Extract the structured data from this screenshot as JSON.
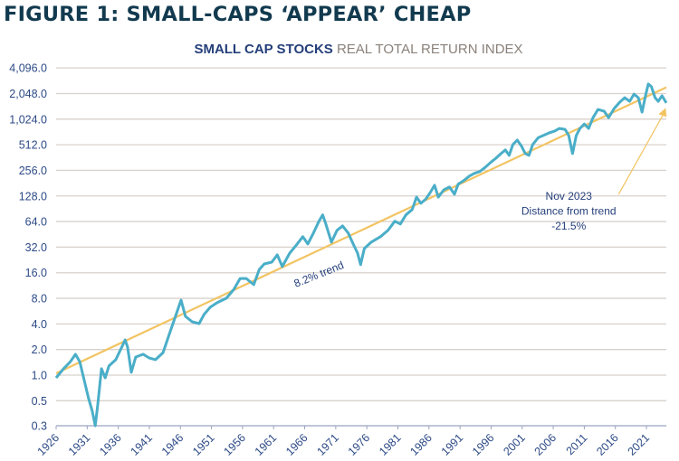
{
  "figure_title": "FIGURE 1: SMALL-CAPS ‘APPEAR’ CHEAP",
  "chart_title": {
    "bold": "SMALL CAP STOCKS",
    "regular": " REAL TOTAL RETURN INDEX"
  },
  "colors": {
    "series": "#4aaec8",
    "trend": "#f2c462",
    "grid": "#d8d2cc",
    "axis": "#9aa4c0",
    "label": "#2d4a86",
    "title": "#123a4f"
  },
  "chart_data": {
    "type": "line",
    "title": "SMALL CAP STOCKS REAL TOTAL RETURN INDEX",
    "xlabel": "",
    "ylabel": "",
    "yscale": "log2",
    "ylim": [
      0.3,
      4096
    ],
    "xlim": [
      1926,
      2024.2
    ],
    "grid": true,
    "y_ticks": [
      4096,
      2048,
      1024,
      512,
      256,
      128,
      64,
      32,
      16,
      8,
      4,
      2,
      1,
      0.5,
      0.3
    ],
    "y_tick_labels": [
      "4,096.0",
      "2,048.0",
      "1,024.0",
      "512.0",
      "256.0",
      "128.0",
      "64.0",
      "32.0",
      "16.0",
      "8.0",
      "4.0",
      "2.0",
      "1.0",
      "0.5",
      "0.3"
    ],
    "x_ticks": [
      1926,
      1931,
      1936,
      1941,
      1946,
      1951,
      1956,
      1961,
      1966,
      1971,
      1976,
      1981,
      1986,
      1991,
      1996,
      2001,
      2006,
      2011,
      2016,
      2021
    ],
    "series": [
      {
        "name": "Small cap stocks real total return index",
        "x": [
          1926.0,
          1927.2,
          1928.3,
          1929.1,
          1929.8,
          1930.5,
          1931.2,
          1931.8,
          1932.3,
          1932.7,
          1933.3,
          1933.9,
          1934.5,
          1935.6,
          1936.5,
          1937.1,
          1937.5,
          1938.1,
          1938.8,
          1940.0,
          1941.0,
          1942.0,
          1943.2,
          1944.2,
          1945.1,
          1946.1,
          1946.8,
          1947.9,
          1949.0,
          1949.8,
          1950.8,
          1951.9,
          1953.4,
          1954.6,
          1955.6,
          1956.6,
          1957.8,
          1958.7,
          1959.5,
          1960.7,
          1961.6,
          1962.4,
          1963.6,
          1964.8,
          1965.7,
          1966.5,
          1967.4,
          1968.3,
          1968.9,
          1969.4,
          1970.3,
          1971.2,
          1972.1,
          1973.0,
          1973.8,
          1974.5,
          1975.0,
          1975.6,
          1976.7,
          1978.2,
          1979.4,
          1980.5,
          1981.4,
          1982.3,
          1983.3,
          1984.0,
          1984.7,
          1985.5,
          1986.3,
          1986.9,
          1987.5,
          1988.4,
          1989.3,
          1990.1,
          1990.7,
          1991.6,
          1992.5,
          1993.3,
          1994.2,
          1995.1,
          1995.9,
          1996.8,
          1997.6,
          1998.3,
          1998.9,
          1999.5,
          2000.2,
          2000.9,
          2001.5,
          2002.1,
          2002.7,
          2003.6,
          2004.4,
          2005.3,
          2006.2,
          2007.0,
          2007.9,
          2008.5,
          2009.1,
          2009.7,
          2010.3,
          2011.0,
          2011.7,
          2012.4,
          2013.2,
          2014.2,
          2014.9,
          2015.8,
          2016.7,
          2017.5,
          2018.3,
          2019.0,
          2019.7,
          2020.3,
          2020.9,
          2021.3,
          2021.8,
          2022.4,
          2022.9,
          2023.5,
          2024.2
        ],
        "y": [
          0.93,
          1.19,
          1.44,
          1.76,
          1.44,
          0.88,
          0.54,
          0.38,
          0.27,
          0.45,
          1.19,
          0.93,
          1.28,
          1.52,
          2.09,
          2.6,
          2.14,
          1.08,
          1.63,
          1.76,
          1.59,
          1.52,
          1.84,
          3.01,
          4.67,
          7.62,
          4.92,
          4.24,
          4.04,
          5.17,
          6.28,
          7.1,
          8.03,
          10.2,
          13.7,
          13.7,
          11.6,
          17.5,
          20.3,
          21.3,
          26.0,
          18.9,
          27.3,
          34.9,
          42.5,
          34.9,
          46.9,
          64.6,
          76.6,
          59.9,
          36.6,
          50.3,
          56.9,
          46.9,
          34.9,
          27.3,
          19.9,
          30.8,
          36.6,
          42.5,
          50.3,
          64.6,
          59.9,
          76.6,
          88.5,
          124,
          105,
          118,
          144,
          171,
          124,
          151,
          163,
          134,
          176,
          194,
          219,
          236,
          248,
          280,
          316,
          357,
          403,
          445,
          384,
          515,
          581,
          491,
          403,
          384,
          515,
          622,
          657,
          705,
          740,
          796,
          776,
          657,
          403,
          657,
          796,
          898,
          796,
          1064,
          1332,
          1268,
          1064,
          1364,
          1620,
          1830,
          1659,
          2018,
          1830,
          1235,
          2018,
          2651,
          2463,
          1830,
          1659,
          1930,
          1590
        ]
      },
      {
        "name": "8.2% trend",
        "x": [
          1926,
          2024.2
        ],
        "y": [
          1.05,
          2420
        ]
      }
    ],
    "annotations": [
      {
        "text": "8.2% trend",
        "x": 1968.5,
        "y": 14
      },
      {
        "lines": [
          "Nov 2023",
          "Distance from trend",
          "-21.5%"
        ],
        "x": 2008.5,
        "y": 64,
        "arrow_to": {
          "x": 2024.1,
          "y": 1390
        }
      }
    ]
  }
}
